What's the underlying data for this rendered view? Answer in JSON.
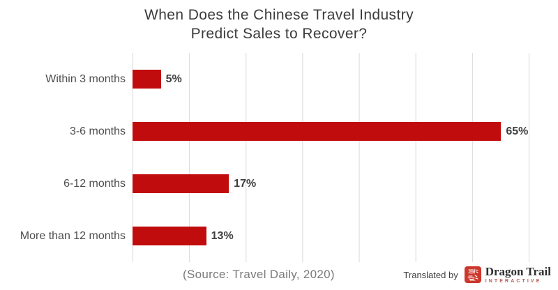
{
  "title": {
    "line1": "When Does the Chinese Travel Industry",
    "line2": "Predict Sales to Recover?"
  },
  "chart_data": {
    "type": "bar",
    "orientation": "horizontal",
    "title": "When Does the Chinese Travel Industry Predict Sales to Recover?",
    "categories": [
      "Within 3 months",
      "3-6 months",
      "6-12 months",
      "More than 12 months"
    ],
    "values": [
      5,
      65,
      17,
      13
    ],
    "value_labels": [
      "5%",
      "65%",
      "17%",
      "13%"
    ],
    "xlabel": "",
    "ylabel": "",
    "xlim": [
      0,
      70
    ],
    "gridline_interval": 10,
    "grid": true,
    "legend": false,
    "bar_color": "#c00c0c",
    "gridline_color": "#d9d9d9"
  },
  "footer": {
    "source": "(Source: Travel Daily, 2020)",
    "translated_by": "Translated by",
    "logo_chars": "龙途",
    "brand_name": "Dragon Trail",
    "brand_subtitle": "INTERACTIVE"
  },
  "colors": {
    "bar": "#c00c0c",
    "gridline": "#d9d9d9",
    "title_text": "#3b3b3b",
    "category_text": "#4d4d4d",
    "value_text": "#3f3f3f",
    "source_text": "#7a7a7a",
    "brand_text": "#2e2e2e",
    "brand_subtitle_text": "#b35a52",
    "seal_background": "#cd372c"
  }
}
